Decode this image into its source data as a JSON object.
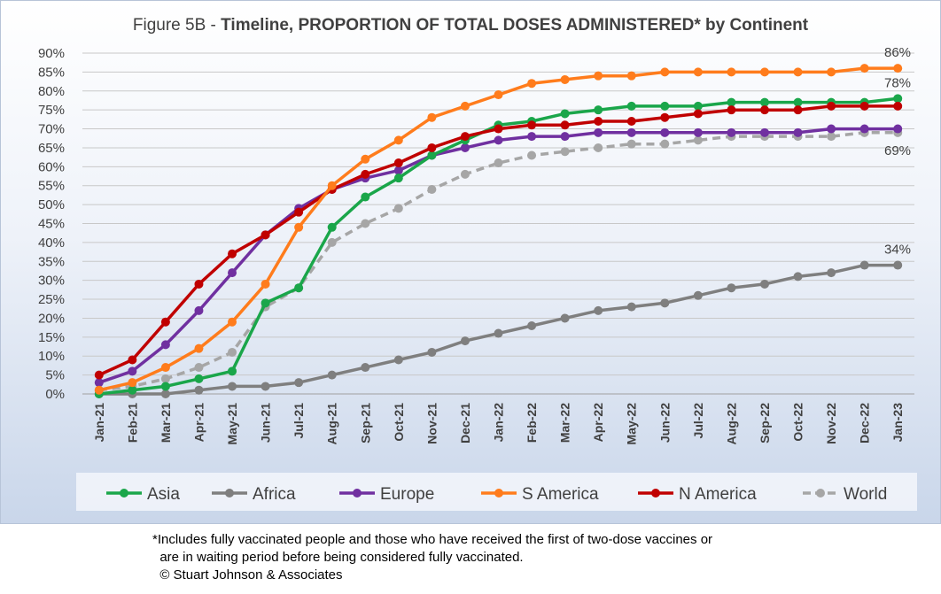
{
  "title_prefix": "Figure 5B - ",
  "title_main": "Timeline, PROPORTION OF TOTAL DOSES ADMINISTERED* by Continent",
  "footnote": {
    "line1": "*Includes fully vaccinated people and those who have received the first of two-dose vaccines or",
    "line2": "  are in waiting period before being considered fully vaccinated.",
    "line3": "  © Stuart Johnson & Associates"
  },
  "chart_data": {
    "type": "line",
    "title": "Figure 5B - Timeline, PROPORTION OF TOTAL DOSES ADMINISTERED* by Continent",
    "xlabel": "",
    "ylabel": "",
    "categories": [
      "Jan-21",
      "Feb-21",
      "Mar-21",
      "Apr-21",
      "May-21",
      "Jun-21",
      "Jul-21",
      "Aug-21",
      "Sep-21",
      "Oct-21",
      "Nov-21",
      "Dec-21",
      "Jan-22",
      "Feb-22",
      "Mar-22",
      "Apr-22",
      "May-22",
      "Jun-22",
      "Jul-22",
      "Aug-22",
      "Sep-22",
      "Oct-22",
      "Nov-22",
      "Dec-22",
      "Jan-23"
    ],
    "ylim": [
      0,
      90
    ],
    "yticks": [
      "0%",
      "5%",
      "10%",
      "15%",
      "20%",
      "25%",
      "30%",
      "35%",
      "40%",
      "45%",
      "50%",
      "55%",
      "60%",
      "65%",
      "70%",
      "75%",
      "80%",
      "85%",
      "90%"
    ],
    "grid": true,
    "legend_position": "bottom",
    "series": [
      {
        "name": "Asia",
        "color": "#1aa64a",
        "dashed": false,
        "values": [
          0,
          1,
          2,
          4,
          6,
          24,
          28,
          44,
          52,
          57,
          63,
          67,
          71,
          72,
          74,
          75,
          76,
          76,
          76,
          77,
          77,
          77,
          77,
          77,
          78
        ]
      },
      {
        "name": "Africa",
        "color": "#7f7f7f",
        "dashed": false,
        "values": [
          0,
          0,
          0,
          1,
          2,
          2,
          3,
          5,
          7,
          9,
          11,
          14,
          16,
          18,
          20,
          22,
          23,
          24,
          26,
          28,
          29,
          31,
          32,
          34,
          34
        ]
      },
      {
        "name": "Europe",
        "color": "#7030a0",
        "dashed": false,
        "values": [
          3,
          6,
          13,
          22,
          32,
          42,
          49,
          54,
          57,
          59,
          63,
          65,
          67,
          68,
          68,
          69,
          69,
          69,
          69,
          69,
          69,
          69,
          70,
          70,
          70
        ]
      },
      {
        "name": "S America",
        "color": "#ff7c1c",
        "dashed": false,
        "values": [
          1,
          3,
          7,
          12,
          19,
          29,
          44,
          55,
          62,
          67,
          73,
          76,
          79,
          82,
          83,
          84,
          84,
          85,
          85,
          85,
          85,
          85,
          85,
          86,
          86
        ]
      },
      {
        "name": "N America",
        "color": "#c00000",
        "dashed": false,
        "values": [
          5,
          9,
          19,
          29,
          37,
          42,
          48,
          54,
          58,
          61,
          65,
          68,
          70,
          71,
          71,
          72,
          72,
          73,
          74,
          75,
          75,
          75,
          76,
          76,
          76
        ]
      },
      {
        "name": "World",
        "color": "#a6a6a6",
        "dashed": true,
        "values": [
          1,
          2,
          4,
          7,
          11,
          23,
          28,
          40,
          45,
          49,
          54,
          58,
          61,
          63,
          64,
          65,
          66,
          66,
          67,
          68,
          68,
          68,
          68,
          69,
          69
        ]
      }
    ],
    "annotations": [
      {
        "text": "86%",
        "series": "S America"
      },
      {
        "text": "78%",
        "series": "Asia"
      },
      {
        "text": "69%",
        "series": "World"
      },
      {
        "text": "34%",
        "series": "Africa"
      }
    ]
  }
}
